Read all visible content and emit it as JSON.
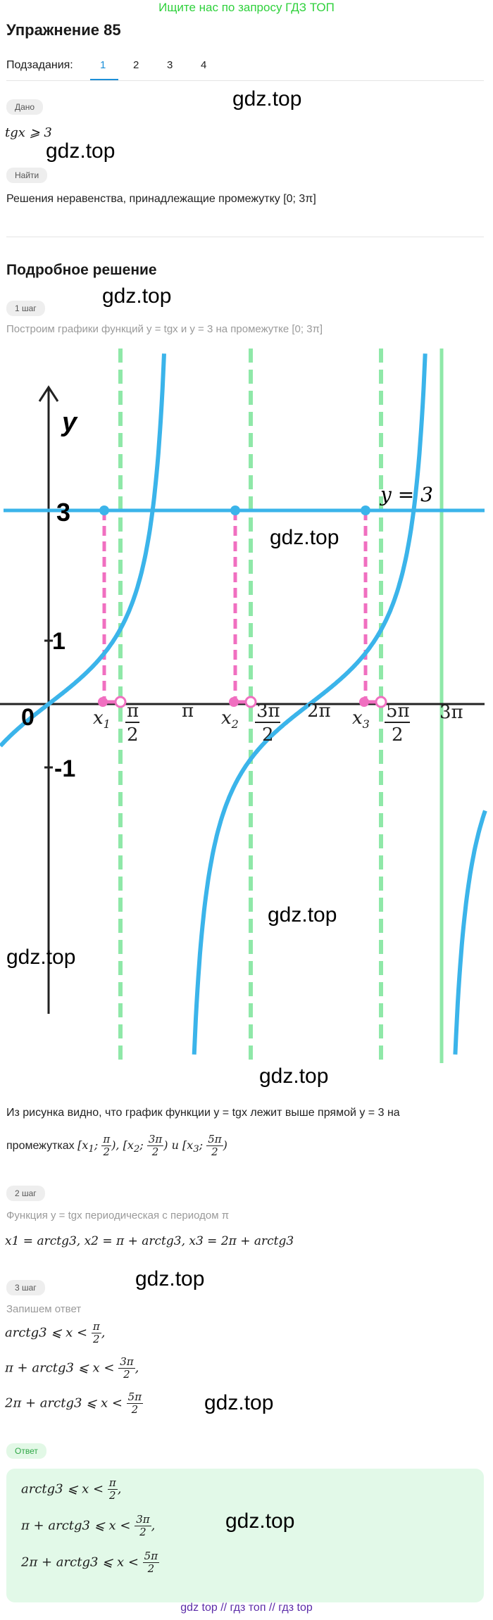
{
  "banner": "Ищите нас по запросу ГДЗ ТОП",
  "exercise_title": "Упражнение 85",
  "subtasks": {
    "label": "Подзадания:",
    "items": [
      "1",
      "2",
      "3",
      "4"
    ],
    "active": "1"
  },
  "given": {
    "tag": "Дано",
    "expr": "tgx ⩾ 3"
  },
  "find": {
    "tag": "Найти",
    "text": "Решения неравенства, принадлежащие промежутку [0; 3π]"
  },
  "solution_title": "Подробное решение",
  "steps": [
    {
      "tag": "1 шаг",
      "text": "Построим графики функций y = tgx и y = 3 на промежутке [0; 3π]"
    },
    {
      "tag": "2 шаг",
      "text": "Функция y = tgx периодическая с периодом π",
      "formula": "x1 = arctg3, x2 = π + arctg3, x3 = 2π + arctg3"
    },
    {
      "tag": "3 шаг",
      "text": "Запишем ответ"
    }
  ],
  "graph": {
    "y_axis_label": "y",
    "line_label": "y = 3",
    "y_ticks": [
      "3",
      "1",
      "0",
      "-1"
    ],
    "x_labels": [
      "x1",
      "π/2",
      "π",
      "x2",
      "3π/2",
      "2π",
      "x3",
      "5π/2",
      "3π"
    ],
    "colors": {
      "tan": "#3bb4ea",
      "asymptote": "#8fe8a8",
      "pink": "#f06fc0",
      "axis": "#222222"
    }
  },
  "conclusion": {
    "part1": "Из рисунка видно, что график функции y = tgx лежит выше прямой y = 3 на",
    "part2": "промежутках",
    "intervals": "[x1; π/2), [x2; 3π/2) и [x3; 5π/2)"
  },
  "answer_lines": [
    {
      "left": "arctg3 ⩽ x <",
      "num": "π",
      "den": "2",
      "tail": ","
    },
    {
      "left": "π + arctg3 ⩽ x <",
      "num": "3π",
      "den": "2",
      "tail": ","
    },
    {
      "left": "2π + arctg3 ⩽ x <",
      "num": "5π",
      "den": "2",
      "tail": ""
    }
  ],
  "answer_tag": "Ответ",
  "watermark": "gdz.top",
  "footer": "gdz top  //  гдз топ  //  гдз top"
}
